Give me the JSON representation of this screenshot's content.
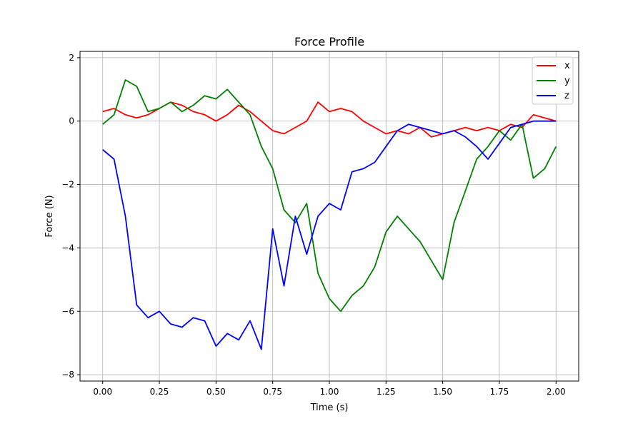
{
  "chart_data": {
    "type": "line",
    "title": "Force Profile",
    "xlabel": "Time (s)",
    "ylabel": "Force (N)",
    "xlim": [
      -0.1,
      2.1
    ],
    "ylim": [
      -8.2,
      2.2
    ],
    "xticks": [
      0.0,
      0.25,
      0.5,
      0.75,
      1.0,
      1.25,
      1.5,
      1.75,
      2.0
    ],
    "xtick_labels": [
      "0.00",
      "0.25",
      "0.50",
      "0.75",
      "1.00",
      "1.25",
      "1.50",
      "1.75",
      "2.00"
    ],
    "yticks": [
      -8,
      -6,
      -4,
      -2,
      0,
      2
    ],
    "ytick_labels": [
      "−8",
      "−6",
      "−4",
      "−2",
      "0",
      "2"
    ],
    "grid": true,
    "legend_position": "top-right",
    "x": [
      0.0,
      0.05,
      0.1,
      0.15,
      0.2,
      0.25,
      0.3,
      0.35,
      0.4,
      0.45,
      0.5,
      0.55,
      0.6,
      0.65,
      0.7,
      0.75,
      0.8,
      0.85,
      0.9,
      0.95,
      1.0,
      1.05,
      1.1,
      1.15,
      1.2,
      1.25,
      1.3,
      1.35,
      1.4,
      1.45,
      1.5,
      1.55,
      1.6,
      1.65,
      1.7,
      1.75,
      1.8,
      1.85,
      1.9,
      1.95,
      2.0
    ],
    "series": [
      {
        "name": "x",
        "color": "#ff0000",
        "values": [
          0.3,
          0.4,
          0.2,
          0.1,
          0.2,
          0.4,
          0.6,
          0.5,
          0.3,
          0.2,
          0.0,
          0.2,
          0.5,
          0.3,
          0.0,
          -0.3,
          -0.4,
          -0.2,
          0.0,
          0.6,
          0.3,
          0.4,
          0.3,
          0.0,
          -0.2,
          -0.4,
          -0.3,
          -0.4,
          -0.2,
          -0.5,
          -0.4,
          -0.3,
          -0.2,
          -0.3,
          -0.2,
          -0.3,
          -0.1,
          -0.2,
          0.2,
          0.1,
          0.0
        ]
      },
      {
        "name": "y",
        "color": "#008000",
        "values": [
          -0.1,
          0.2,
          1.3,
          1.1,
          0.3,
          0.4,
          0.6,
          0.3,
          0.5,
          0.8,
          0.7,
          1.0,
          0.6,
          0.2,
          -0.8,
          -1.5,
          -2.8,
          -3.2,
          -2.6,
          -4.8,
          -5.6,
          -6.0,
          -5.5,
          -5.2,
          -4.6,
          -3.5,
          -3.0,
          -3.4,
          -3.8,
          -4.4,
          -5.0,
          -3.2,
          -2.2,
          -1.2,
          -0.8,
          -0.3,
          -0.6,
          -0.1,
          -1.8,
          -1.5,
          -0.8
        ]
      },
      {
        "name": "z",
        "color": "#0000ff",
        "values": [
          -0.9,
          -1.2,
          -3.0,
          -5.8,
          -6.2,
          -6.0,
          -6.4,
          -6.5,
          -6.2,
          -6.3,
          -7.1,
          -6.7,
          -6.9,
          -6.3,
          -7.2,
          -3.4,
          -5.2,
          -3.0,
          -4.2,
          -3.0,
          -2.6,
          -2.8,
          -1.6,
          -1.5,
          -1.3,
          -0.8,
          -0.3,
          -0.1,
          -0.2,
          -0.3,
          -0.4,
          -0.3,
          -0.5,
          -0.8,
          -1.2,
          -0.7,
          -0.2,
          -0.1,
          0.0,
          0.0,
          0.0
        ]
      }
    ]
  }
}
